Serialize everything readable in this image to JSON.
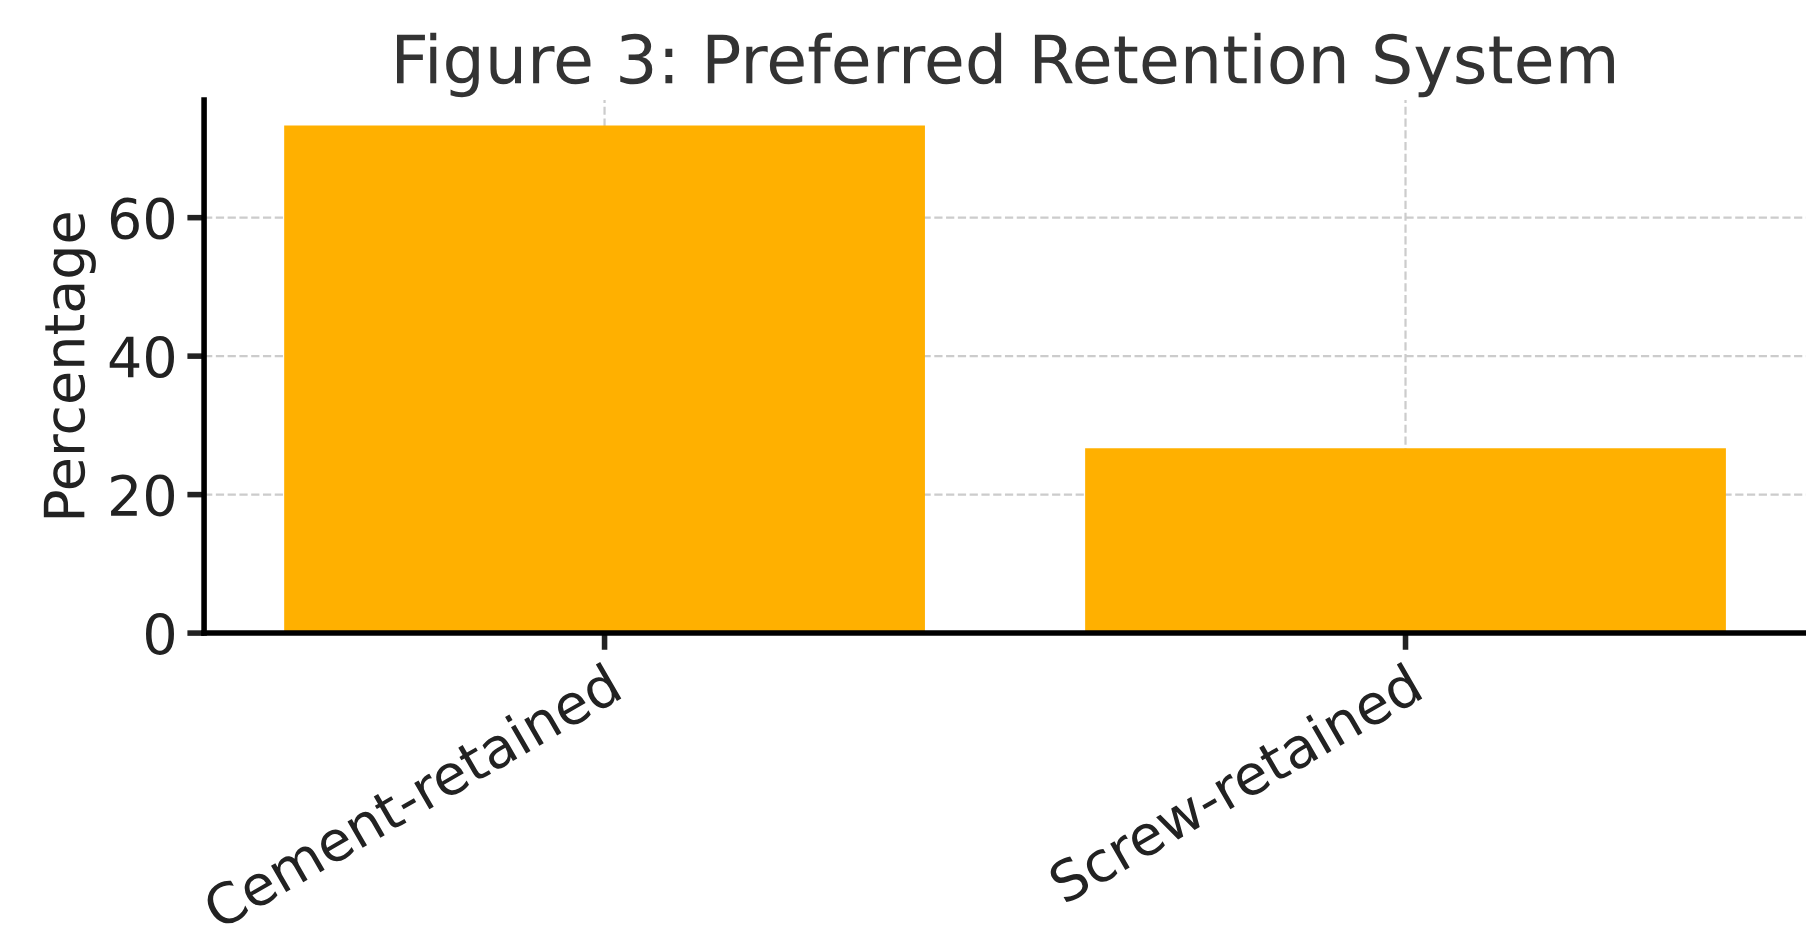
{
  "chart_data": {
    "type": "bar",
    "title": "Figure 3: Preferred Retention System",
    "ylabel": "Percentage",
    "categories": [
      "Cement-retained",
      "Screw-retained"
    ],
    "values": [
      73.3,
      26.7
    ],
    "color": "#ffb000",
    "ylim": [
      0,
      77
    ],
    "yticks": [
      0,
      20,
      40,
      60
    ],
    "grid": true
  }
}
